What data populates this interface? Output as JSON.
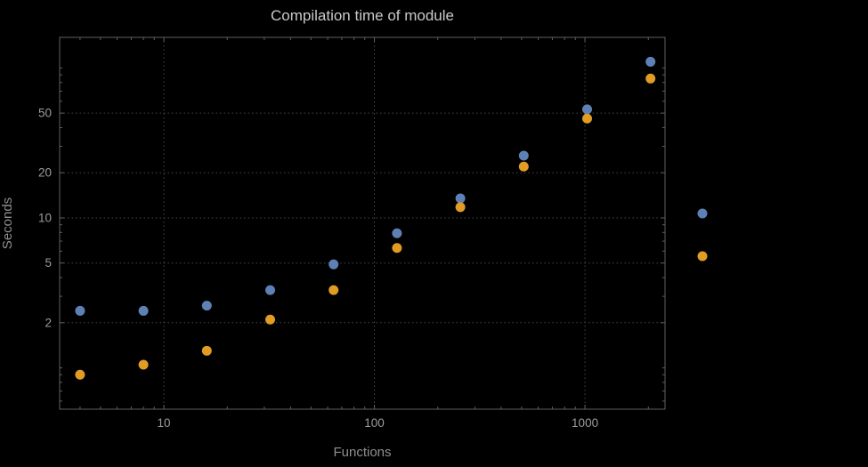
{
  "window": {
    "background": "#000000"
  },
  "chart_data": {
    "type": "scatter",
    "title": "Compilation time of module",
    "xlabel": "Functions",
    "ylabel": "Seconds",
    "xscale": "log",
    "yscale": "log",
    "xlim": [
      3.2,
      2400
    ],
    "ylim": [
      0.53,
      160
    ],
    "grid": true,
    "grid_style": "dotted",
    "x_ticks": {
      "values": [
        10,
        100,
        1000
      ],
      "labels": [
        "10",
        "100",
        "1000"
      ]
    },
    "y_ticks": {
      "values": [
        2,
        5,
        10,
        20,
        50
      ],
      "labels": [
        "2",
        "5",
        "10",
        "20",
        "50"
      ]
    },
    "series": [
      {
        "name": "blue",
        "color": "#5e81b5",
        "x": [
          4,
          8,
          16,
          32,
          64,
          128,
          256,
          512,
          1024,
          2048
        ],
        "y": [
          2.4,
          2.4,
          2.6,
          3.3,
          4.9,
          7.9,
          13.5,
          26,
          53,
          110
        ]
      },
      {
        "name": "orange",
        "color": "#e19c24",
        "x": [
          4,
          8,
          16,
          32,
          64,
          128,
          256,
          512,
          1024,
          2048
        ],
        "y": [
          0.9,
          1.05,
          1.3,
          2.1,
          3.3,
          6.3,
          11.8,
          22,
          46,
          85
        ]
      }
    ],
    "legend": {
      "position": "right-outside",
      "markers": [
        {
          "color": "#5e81b5"
        },
        {
          "color": "#e19c24"
        }
      ]
    }
  },
  "style": {
    "background": "#000000",
    "frame_color": "#606060",
    "grid_color": "#474747",
    "tick_label_color": "#9c9c9c",
    "title_color": "#c9c9c9",
    "axis_label_color": "#8f8f8f",
    "marker_radius": 5.5
  }
}
